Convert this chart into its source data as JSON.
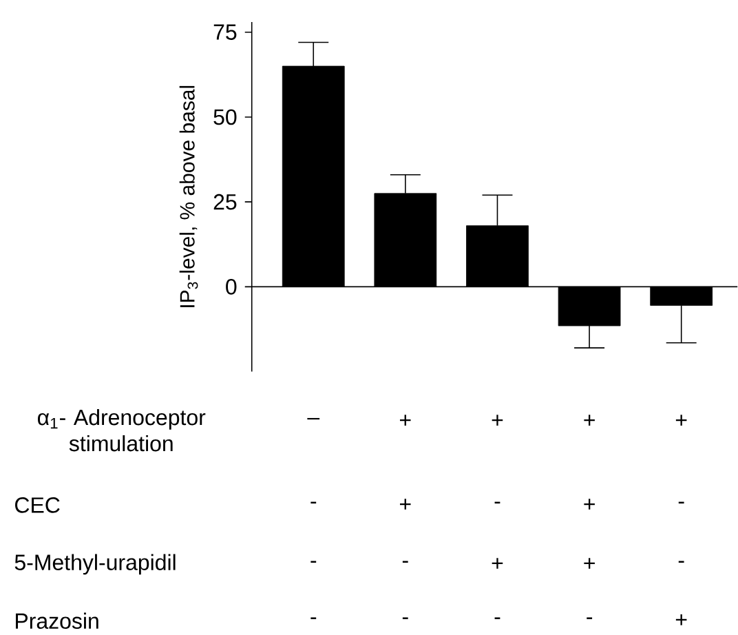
{
  "chart_data": {
    "type": "bar",
    "ylabel": "IP$_{3}$-level, % above basal",
    "categories": [
      null,
      null,
      null,
      null,
      null
    ],
    "values": [
      65,
      27.5,
      18,
      -11.5,
      -5.5
    ],
    "errors": [
      [
        65,
        72
      ],
      [
        27.5,
        33
      ],
      [
        18,
        27
      ],
      [
        -18,
        -11.5
      ],
      [
        -16.5,
        -5.5
      ]
    ],
    "color": "#000000",
    "ylim": [
      -25,
      78
    ],
    "yticks": [
      0,
      25,
      50,
      75
    ],
    "annotations": [
      "α$_{1}$- Adrenoceptor stimulation",
      "–",
      "+",
      "+",
      "+",
      "+",
      "CEC",
      "-",
      "+",
      "-",
      "+",
      "-",
      "5-Methyl-urapidil",
      "-",
      "-",
      "+",
      "+",
      "-",
      "Prazosin",
      "-",
      "-",
      "-",
      "-",
      "+"
    ]
  }
}
